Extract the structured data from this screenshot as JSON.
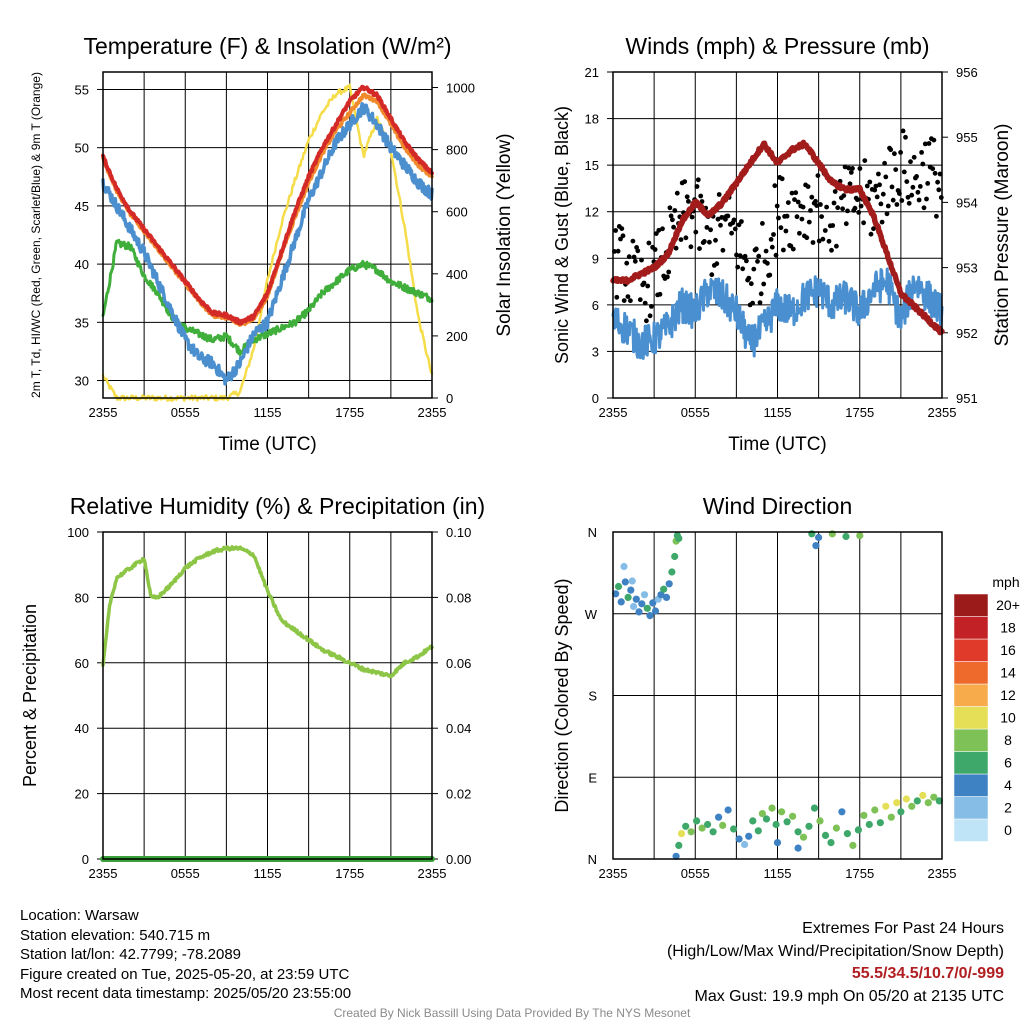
{
  "info": {
    "location": "Location: Warsaw",
    "elevation": "Station elevation: 540.715 m",
    "latlon": "Station lat/lon: 42.7799; -78.2089",
    "created": "Figure created on Tue, 2025-05-20, at 23:59 UTC",
    "recent": "Most recent data timestamp: 2025/05/20 23:55:00"
  },
  "extremes": {
    "title": "Extremes For Past 24 Hours",
    "subtitle": "(High/Low/Max Wind/Precipitation/Snow Depth)",
    "values": "55.5/34.5/10.7/0/-999",
    "gust": "Max Gust: 19.9 mph On 05/20 at 2135 UTC"
  },
  "credit": "Created By Nick Bassill Using Data Provided By The NYS Mesonet",
  "colors": {
    "temperature": "#d42a27",
    "dewpoint": "#3fae3a",
    "windchill": "#4c8fcf",
    "temp9m": "#f08a2c",
    "solar": "#f5dd4a",
    "wind": "#4a90d0",
    "gust": "#000000",
    "pressure": "#a31c1c",
    "humidity": "#8dc646",
    "precip": "#3aa13a"
  },
  "chart_data": [
    {
      "type": "line",
      "title": "Temperature (F) & Insolation (W/m²)",
      "xlabel": "Time (UTC)",
      "ylabel": "2m T, Td, HI/WC (Red, Green, Scarlet/Blue) & 9m T (Orange)",
      "ylabel_right": "Solar Insolation (Yellow)",
      "x_ticks": [
        "2355",
        "0555",
        "1155",
        "1755",
        "2355"
      ],
      "y_ticks": [
        "30",
        "35",
        "40",
        "45",
        "50",
        "55"
      ],
      "y_ticks_right": [
        "0",
        "200",
        "400",
        "600",
        "800",
        "1000"
      ],
      "ylim": [
        28.5,
        56.5
      ],
      "ylim_right": [
        0,
        1050
      ],
      "hours": [
        0,
        1,
        2,
        3,
        4,
        5,
        6,
        7,
        8,
        9,
        10,
        11,
        12,
        13,
        14,
        15,
        16,
        17,
        18,
        19,
        20,
        21,
        22,
        23,
        24
      ],
      "series": [
        {
          "name": "2m T",
          "axis": "left",
          "values": [
            49.2,
            46.5,
            44.5,
            43.0,
            41.5,
            40.0,
            38.5,
            37.0,
            35.8,
            35.6,
            35.0,
            35.5,
            37.5,
            41.0,
            44.5,
            47.5,
            50.0,
            52.0,
            54.0,
            55.2,
            54.5,
            52.5,
            50.5,
            49.0,
            47.8
          ]
        },
        {
          "name": "2m Td",
          "axis": "left",
          "values": [
            35.5,
            41.8,
            41.5,
            39.0,
            37.5,
            35.5,
            34.5,
            34.0,
            33.5,
            33.8,
            32.5,
            33.5,
            34.0,
            34.5,
            35.0,
            36.0,
            37.5,
            38.5,
            39.5,
            40.0,
            39.5,
            38.5,
            38.0,
            37.5,
            37.0
          ]
        },
        {
          "name": "HI/WC",
          "axis": "left",
          "values": [
            47.0,
            45.0,
            43.0,
            41.0,
            38.5,
            36.0,
            33.5,
            32.0,
            31.5,
            30.0,
            31.5,
            34.0,
            35.0,
            38.5,
            42.0,
            45.5,
            48.0,
            50.5,
            52.0,
            53.5,
            52.0,
            50.0,
            48.5,
            47.0,
            46.0
          ]
        },
        {
          "name": "9m T",
          "axis": "left",
          "values": [
            49.0,
            46.3,
            44.3,
            42.8,
            41.3,
            39.8,
            38.3,
            36.8,
            35.6,
            35.4,
            34.8,
            35.3,
            37.2,
            40.8,
            44.0,
            47.0,
            49.5,
            51.5,
            53.0,
            54.5,
            54.0,
            52.0,
            50.0,
            48.5,
            47.5
          ]
        },
        {
          "name": "Solar Insolation",
          "axis": "right",
          "values": [
            70,
            0,
            0,
            0,
            0,
            0,
            0,
            0,
            0,
            0,
            20,
            160,
            380,
            560,
            700,
            830,
            920,
            980,
            1000,
            780,
            900,
            800,
            550,
            260,
            70
          ]
        }
      ]
    },
    {
      "type": "line",
      "title": "Winds (mph) & Pressure (mb)",
      "xlabel": "Time (UTC)",
      "ylabel": "Sonic Wind & Gust (Blue, Black)",
      "ylabel_right": "Station Pressure (Maroon)",
      "x_ticks": [
        "2355",
        "0555",
        "1155",
        "1755",
        "2355"
      ],
      "y_ticks": [
        "0",
        "3",
        "6",
        "9",
        "12",
        "15",
        "18",
        "21"
      ],
      "y_ticks_right": [
        "951",
        "952",
        "953",
        "954",
        "955",
        "956"
      ],
      "ylim": [
        0,
        21
      ],
      "ylim_right": [
        951,
        956
      ],
      "hours": [
        0,
        1,
        2,
        3,
        4,
        5,
        6,
        7,
        8,
        9,
        10,
        11,
        12,
        13,
        14,
        15,
        16,
        17,
        18,
        19,
        20,
        21,
        22,
        23,
        24
      ],
      "series": [
        {
          "name": "Sonic Wind",
          "axis": "left",
          "values": [
            5.0,
            4.5,
            3.5,
            3.8,
            4.5,
            6.0,
            5.5,
            7.0,
            6.5,
            5.5,
            3.5,
            4.5,
            6.0,
            5.5,
            6.5,
            7.0,
            6.0,
            6.5,
            5.5,
            7.0,
            7.5,
            5.0,
            7.5,
            6.5,
            5.5
          ]
        },
        {
          "name": "Gust",
          "axis": "left",
          "values": [
            9.0,
            8.5,
            7.0,
            8.0,
            9.5,
            11.5,
            12.0,
            10.0,
            11.0,
            10.5,
            7.5,
            9.0,
            12.0,
            12.0,
            12.5,
            12.5,
            11.5,
            12.5,
            13.0,
            12.5,
            14.0,
            15.0,
            14.0,
            15.0,
            13.5
          ]
        },
        {
          "name": "Station Pressure",
          "axis": "right",
          "values": [
            952.8,
            952.8,
            952.9,
            953.0,
            953.2,
            953.7,
            954.0,
            953.8,
            954.0,
            954.3,
            954.6,
            954.9,
            954.6,
            954.8,
            954.9,
            954.6,
            954.3,
            954.2,
            954.2,
            953.8,
            953.2,
            952.6,
            952.4,
            952.2,
            952.0
          ]
        }
      ]
    },
    {
      "type": "line",
      "title": "Relative Humidity (%) & Precipitation (in)",
      "ylabel": "Percent & Precipitation",
      "x_ticks": [
        "2355",
        "0555",
        "1155",
        "1755",
        "2355"
      ],
      "y_ticks": [
        "0",
        "20",
        "40",
        "60",
        "80",
        "100"
      ],
      "y_ticks_right": [
        "0.00",
        "0.02",
        "0.04",
        "0.06",
        "0.08",
        "0.10"
      ],
      "ylim": [
        0,
        100
      ],
      "ylim_right": [
        0,
        0.1
      ],
      "hours": [
        0,
        0.5,
        1,
        2,
        3,
        3.5,
        4,
        5,
        6,
        7,
        8,
        9,
        10,
        11,
        12,
        13,
        14,
        15,
        16,
        17,
        18,
        19,
        20,
        21,
        22,
        23,
        24
      ],
      "series": [
        {
          "name": "Relative Humidity",
          "axis": "left",
          "values": [
            59,
            78,
            86,
            89,
            92,
            80,
            80,
            84,
            89,
            92,
            94,
            95,
            95,
            93,
            82,
            73,
            70,
            67,
            64,
            62,
            60,
            58,
            57,
            56,
            60,
            62,
            65
          ]
        },
        {
          "name": "Precipitation",
          "axis": "right",
          "values": [
            0,
            0,
            0,
            0,
            0,
            0,
            0,
            0,
            0,
            0,
            0,
            0,
            0,
            0,
            0,
            0,
            0,
            0,
            0,
            0,
            0,
            0,
            0,
            0,
            0,
            0,
            0
          ]
        }
      ]
    },
    {
      "type": "scatter",
      "title": "Wind Direction",
      "ylabel": "Direction (Colored By Speed)",
      "x_ticks": [
        "2355",
        "0555",
        "1155",
        "1755",
        "2355"
      ],
      "y_ticks": [
        "N",
        "E",
        "S",
        "W",
        "N"
      ],
      "ylim": [
        0,
        360
      ],
      "legend_title": "mph",
      "legend_labels": [
        "0",
        "2",
        "4",
        "6",
        "8",
        "10",
        "12",
        "14",
        "16",
        "18",
        "20+"
      ],
      "legend_colors": [
        "#bfe3f7",
        "#85bde6",
        "#3f82c4",
        "#3ea86a",
        "#7dc157",
        "#e5df58",
        "#f7ab4b",
        "#ee6a2c",
        "#e03a2a",
        "#c22126",
        "#9b1b1b"
      ],
      "points": [
        {
          "h": 0.2,
          "d": 292,
          "s": 3
        },
        {
          "h": 0.4,
          "d": 300,
          "s": 5
        },
        {
          "h": 0.6,
          "d": 283,
          "s": 3
        },
        {
          "h": 0.9,
          "d": 305,
          "s": 4
        },
        {
          "h": 1.1,
          "d": 288,
          "s": 6
        },
        {
          "h": 1.3,
          "d": 296,
          "s": 3
        },
        {
          "h": 1.5,
          "d": 278,
          "s": 2
        },
        {
          "h": 1.7,
          "d": 286,
          "s": 4
        },
        {
          "h": 1.9,
          "d": 272,
          "s": 3
        },
        {
          "h": 2.1,
          "d": 281,
          "s": 4
        },
        {
          "h": 2.3,
          "d": 291,
          "s": 2
        },
        {
          "h": 2.5,
          "d": 276,
          "s": 5
        },
        {
          "h": 2.7,
          "d": 268,
          "s": 3
        },
        {
          "h": 2.9,
          "d": 282,
          "s": 4
        },
        {
          "h": 3.1,
          "d": 273,
          "s": 3
        },
        {
          "h": 3.3,
          "d": 286,
          "s": 2
        },
        {
          "h": 3.5,
          "d": 291,
          "s": 4
        },
        {
          "h": 3.7,
          "d": 297,
          "s": 6
        },
        {
          "h": 3.9,
          "d": 288,
          "s": 3
        },
        {
          "h": 4.1,
          "d": 303,
          "s": 4
        },
        {
          "h": 4.3,
          "d": 316,
          "s": 6
        },
        {
          "h": 4.5,
          "d": 333,
          "s": 5
        },
        {
          "h": 4.6,
          "d": 350,
          "s": 7
        },
        {
          "h": 4.7,
          "d": 356,
          "s": 6
        },
        {
          "h": 4.8,
          "d": 353,
          "s": 5
        },
        {
          "h": 0.8,
          "d": 322,
          "s": 2
        },
        {
          "h": 1.4,
          "d": 306,
          "s": 2
        },
        {
          "h": 4.6,
          "d": 3,
          "s": 4
        },
        {
          "h": 4.8,
          "d": 15,
          "s": 6
        },
        {
          "h": 5.0,
          "d": 28,
          "s": 9
        },
        {
          "h": 5.3,
          "d": 36,
          "s": 5
        },
        {
          "h": 5.7,
          "d": 30,
          "s": 7
        },
        {
          "h": 6.1,
          "d": 42,
          "s": 6
        },
        {
          "h": 6.5,
          "d": 34,
          "s": 8
        },
        {
          "h": 6.9,
          "d": 38,
          "s": 5
        },
        {
          "h": 7.3,
          "d": 30,
          "s": 6
        },
        {
          "h": 7.7,
          "d": 46,
          "s": 4
        },
        {
          "h": 8.0,
          "d": 37,
          "s": 7
        },
        {
          "h": 8.4,
          "d": 54,
          "s": 4
        },
        {
          "h": 8.8,
          "d": 33,
          "s": 6
        },
        {
          "h": 9.2,
          "d": 22,
          "s": 3
        },
        {
          "h": 9.6,
          "d": 16,
          "s": 2
        },
        {
          "h": 9.9,
          "d": 25,
          "s": 3
        },
        {
          "h": 10.2,
          "d": 42,
          "s": 6
        },
        {
          "h": 10.6,
          "d": 31,
          "s": 5
        },
        {
          "h": 10.9,
          "d": 50,
          "s": 7
        },
        {
          "h": 11.2,
          "d": 44,
          "s": 6
        },
        {
          "h": 11.6,
          "d": 56,
          "s": 8
        },
        {
          "h": 11.9,
          "d": 38,
          "s": 5
        },
        {
          "h": 12.3,
          "d": 52,
          "s": 7
        },
        {
          "h": 12.7,
          "d": 41,
          "s": 6
        },
        {
          "h": 13.1,
          "d": 47,
          "s": 8
        },
        {
          "h": 13.5,
          "d": 30,
          "s": 6
        },
        {
          "h": 13.9,
          "d": 24,
          "s": 7
        },
        {
          "h": 14.3,
          "d": 36,
          "s": 5
        },
        {
          "h": 14.7,
          "d": 56,
          "s": 6
        },
        {
          "h": 15.1,
          "d": 42,
          "s": 7
        },
        {
          "h": 15.5,
          "d": 26,
          "s": 6
        },
        {
          "h": 15.9,
          "d": 18,
          "s": 5
        },
        {
          "h": 16.3,
          "d": 34,
          "s": 7
        },
        {
          "h": 16.7,
          "d": 52,
          "s": 4
        },
        {
          "h": 17.1,
          "d": 28,
          "s": 6
        },
        {
          "h": 17.5,
          "d": 15,
          "s": 8
        },
        {
          "h": 17.9,
          "d": 32,
          "s": 6
        },
        {
          "h": 18.3,
          "d": 48,
          "s": 7
        },
        {
          "h": 18.7,
          "d": 38,
          "s": 5
        },
        {
          "h": 19.1,
          "d": 54,
          "s": 8
        },
        {
          "h": 19.5,
          "d": 40,
          "s": 6
        },
        {
          "h": 19.9,
          "d": 58,
          "s": 10
        },
        {
          "h": 20.3,
          "d": 46,
          "s": 7
        },
        {
          "h": 20.7,
          "d": 62,
          "s": 9
        },
        {
          "h": 21.0,
          "d": 52,
          "s": 6
        },
        {
          "h": 21.4,
          "d": 66,
          "s": 10
        },
        {
          "h": 21.8,
          "d": 58,
          "s": 8
        },
        {
          "h": 22.2,
          "d": 64,
          "s": 6
        },
        {
          "h": 22.6,
          "d": 70,
          "s": 9
        },
        {
          "h": 23.0,
          "d": 62,
          "s": 7
        },
        {
          "h": 23.4,
          "d": 68,
          "s": 8
        },
        {
          "h": 23.8,
          "d": 64,
          "s": 6
        },
        {
          "h": 12.0,
          "d": 18,
          "s": 3
        },
        {
          "h": 13.5,
          "d": 12,
          "s": 4
        },
        {
          "h": 14.5,
          "d": 358,
          "s": 6
        },
        {
          "h": 15.0,
          "d": 354,
          "s": 4
        },
        {
          "h": 16.0,
          "d": 358,
          "s": 7
        },
        {
          "h": 17.0,
          "d": 355,
          "s": 5
        },
        {
          "h": 14.8,
          "d": 345,
          "s": 4
        },
        {
          "h": 18.0,
          "d": 356,
          "s": 8
        }
      ]
    }
  ]
}
